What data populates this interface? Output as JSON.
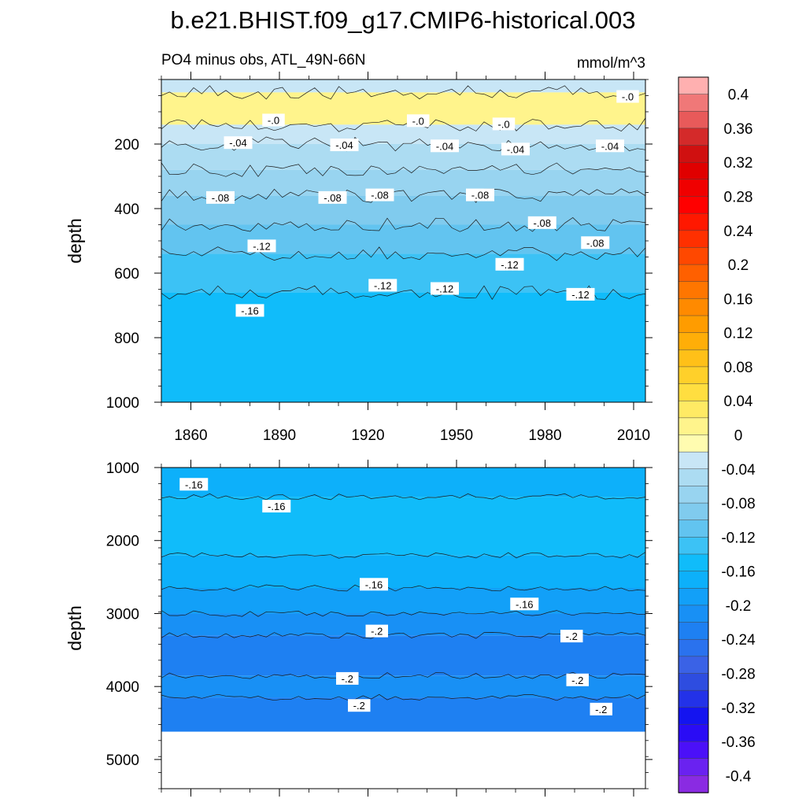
{
  "title": "b.e21.BHIST.f09_g17.CMIP6-historical.003",
  "subtitle_left": "PO4 minus obs, ATL_49N-66N",
  "subtitle_right": "mmol/m^3",
  "colors": {
    "levels": [
      {
        "value": -0.4,
        "color": "#8a2be2"
      },
      {
        "value": -0.38,
        "color": "#6a22f0"
      },
      {
        "value": -0.36,
        "color": "#4b10f8"
      },
      {
        "value": -0.34,
        "color": "#2a0cf5"
      },
      {
        "value": -0.32,
        "color": "#1414f0"
      },
      {
        "value": -0.3,
        "color": "#2332e8"
      },
      {
        "value": -0.28,
        "color": "#2e4de0"
      },
      {
        "value": -0.26,
        "color": "#3a62e6"
      },
      {
        "value": -0.24,
        "color": "#2a72ee"
      },
      {
        "value": -0.22,
        "color": "#1e80f2"
      },
      {
        "value": -0.2,
        "color": "#1890f5"
      },
      {
        "value": -0.18,
        "color": "#12a0f8"
      },
      {
        "value": -0.16,
        "color": "#0db0fa"
      },
      {
        "value": -0.14,
        "color": "#10bcfa"
      },
      {
        "value": -0.12,
        "color": "#3cc2f5"
      },
      {
        "value": -0.1,
        "color": "#62c4f0"
      },
      {
        "value": -0.08,
        "color": "#80cbee"
      },
      {
        "value": -0.06,
        "color": "#98d4f0"
      },
      {
        "value": -0.04,
        "color": "#acdcf2"
      },
      {
        "value": -0.02,
        "color": "#c8e6f6"
      },
      {
        "value": 0.0,
        "color": "#fffcb0"
      },
      {
        "value": 0.02,
        "color": "#fff48c"
      },
      {
        "value": 0.04,
        "color": "#ffea64"
      },
      {
        "value": 0.06,
        "color": "#ffde40"
      },
      {
        "value": 0.08,
        "color": "#ffd02a"
      },
      {
        "value": 0.1,
        "color": "#ffc018"
      },
      {
        "value": 0.12,
        "color": "#ffae08"
      },
      {
        "value": 0.14,
        "color": "#ff9c00"
      },
      {
        "value": 0.16,
        "color": "#ff8a00"
      },
      {
        "value": 0.18,
        "color": "#ff7600"
      },
      {
        "value": 0.2,
        "color": "#ff6000"
      },
      {
        "value": 0.22,
        "color": "#ff4800"
      },
      {
        "value": 0.24,
        "color": "#ff3000"
      },
      {
        "value": 0.26,
        "color": "#ff1800"
      },
      {
        "value": 0.28,
        "color": "#ff0000"
      },
      {
        "value": 0.3,
        "color": "#f00000"
      },
      {
        "value": 0.32,
        "color": "#e00000"
      },
      {
        "value": 0.34,
        "color": "#d01010"
      },
      {
        "value": 0.36,
        "color": "#d42a2a"
      },
      {
        "value": 0.38,
        "color": "#e85a5a"
      },
      {
        "value": 0.4,
        "color": "#f07878"
      },
      {
        "value": 0.42,
        "color": "#ffb0b0"
      }
    ]
  },
  "colorbar": {
    "labels": [
      "0.4",
      "0.36",
      "0.32",
      "0.28",
      "0.24",
      "0.2",
      "0.16",
      "0.12",
      "0.08",
      "0.04",
      "0",
      "-0.04",
      "-0.08",
      "-0.12",
      "-0.16",
      "-0.2",
      "-0.24",
      "-0.28",
      "-0.32",
      "-0.36",
      "-0.4"
    ]
  },
  "chart_data": [
    {
      "type": "heatmap",
      "panel": "upper",
      "ylabel": "depth",
      "xlim": [
        1850,
        2014
      ],
      "ylim": [
        1000,
        0
      ],
      "x_ticks": [
        1860,
        1890,
        1920,
        1950,
        1980,
        2010
      ],
      "x_tick_labels": [
        "1860",
        "1890",
        "1920",
        "1950",
        "1980",
        "2010"
      ],
      "y_ticks": [
        200,
        400,
        600,
        800,
        1000
      ],
      "y_tick_labels": [
        "200",
        "400",
        "600",
        "800",
        "1000"
      ],
      "depth_bands": [
        {
          "top": 0,
          "bottom": 40,
          "value": -0.02
        },
        {
          "top": 40,
          "bottom": 140,
          "value": 0.02
        },
        {
          "top": 140,
          "bottom": 200,
          "value": -0.02
        },
        {
          "top": 200,
          "bottom": 280,
          "value": -0.04
        },
        {
          "top": 280,
          "bottom": 360,
          "value": -0.06
        },
        {
          "top": 360,
          "bottom": 450,
          "value": -0.08
        },
        {
          "top": 450,
          "bottom": 540,
          "value": -0.1
        },
        {
          "top": 540,
          "bottom": 660,
          "value": -0.12
        },
        {
          "top": 660,
          "bottom": 1000,
          "value": -0.14
        }
      ],
      "contour_labels": [
        {
          "text": "-.0",
          "x": 2008,
          "y": 55
        },
        {
          "text": "-.0",
          "x": 1888,
          "y": 128
        },
        {
          "text": "-.0",
          "x": 1937,
          "y": 130
        },
        {
          "text": "-.0",
          "x": 1966,
          "y": 140
        },
        {
          "text": "-.04",
          "x": 1876,
          "y": 198
        },
        {
          "text": "-.04",
          "x": 1912,
          "y": 205
        },
        {
          "text": "-.04",
          "x": 1946,
          "y": 208
        },
        {
          "text": "-.04",
          "x": 1970,
          "y": 218
        },
        {
          "text": "-.04",
          "x": 2002,
          "y": 208
        },
        {
          "text": "-.08",
          "x": 1870,
          "y": 368
        },
        {
          "text": "-.08",
          "x": 1908,
          "y": 368
        },
        {
          "text": "-.08",
          "x": 1924,
          "y": 360
        },
        {
          "text": "-.08",
          "x": 1958,
          "y": 360
        },
        {
          "text": "-.08",
          "x": 1979,
          "y": 446
        },
        {
          "text": "-.08",
          "x": 1997,
          "y": 508
        },
        {
          "text": "-.12",
          "x": 1884,
          "y": 518
        },
        {
          "text": "-.12",
          "x": 1925,
          "y": 640
        },
        {
          "text": "-.12",
          "x": 1946,
          "y": 650
        },
        {
          "text": "-.12",
          "x": 1968,
          "y": 575
        },
        {
          "text": "-.12",
          "x": 1992,
          "y": 668
        },
        {
          "text": "-.16",
          "x": 1880,
          "y": 718
        }
      ]
    },
    {
      "type": "heatmap",
      "panel": "lower",
      "ylabel": "depth",
      "xlim": [
        1850,
        2014
      ],
      "ylim": [
        5400,
        1000
      ],
      "y_ticks": [
        1000,
        2000,
        3000,
        4000,
        5000
      ],
      "y_tick_labels": [
        "1000",
        "2000",
        "3000",
        "4000",
        "5000"
      ],
      "no_data_below": 4620,
      "depth_bands": [
        {
          "top": 1000,
          "bottom": 1400,
          "value": -0.16
        },
        {
          "top": 1400,
          "bottom": 2200,
          "value": -0.14
        },
        {
          "top": 2200,
          "bottom": 2650,
          "value": -0.16
        },
        {
          "top": 2650,
          "bottom": 3000,
          "value": -0.18
        },
        {
          "top": 3000,
          "bottom": 3300,
          "value": -0.2
        },
        {
          "top": 3300,
          "bottom": 3850,
          "value": -0.22
        },
        {
          "top": 3850,
          "bottom": 4150,
          "value": -0.2
        },
        {
          "top": 4150,
          "bottom": 4620,
          "value": -0.22
        }
      ],
      "contour_labels": [
        {
          "text": "-.16",
          "x": 1861,
          "y": 1240
        },
        {
          "text": "-.16",
          "x": 1889,
          "y": 1540
        },
        {
          "text": "-.16",
          "x": 1922,
          "y": 2610
        },
        {
          "text": "-.16",
          "x": 1973,
          "y": 2880
        },
        {
          "text": "-.2",
          "x": 1923,
          "y": 3250
        },
        {
          "text": "-.2",
          "x": 1989,
          "y": 3320
        },
        {
          "text": "-.2",
          "x": 1913,
          "y": 3900
        },
        {
          "text": "-.2",
          "x": 1991,
          "y": 3920
        },
        {
          "text": "-.2",
          "x": 1917,
          "y": 4270
        },
        {
          "text": "-.2",
          "x": 1999,
          "y": 4320
        }
      ]
    }
  ]
}
